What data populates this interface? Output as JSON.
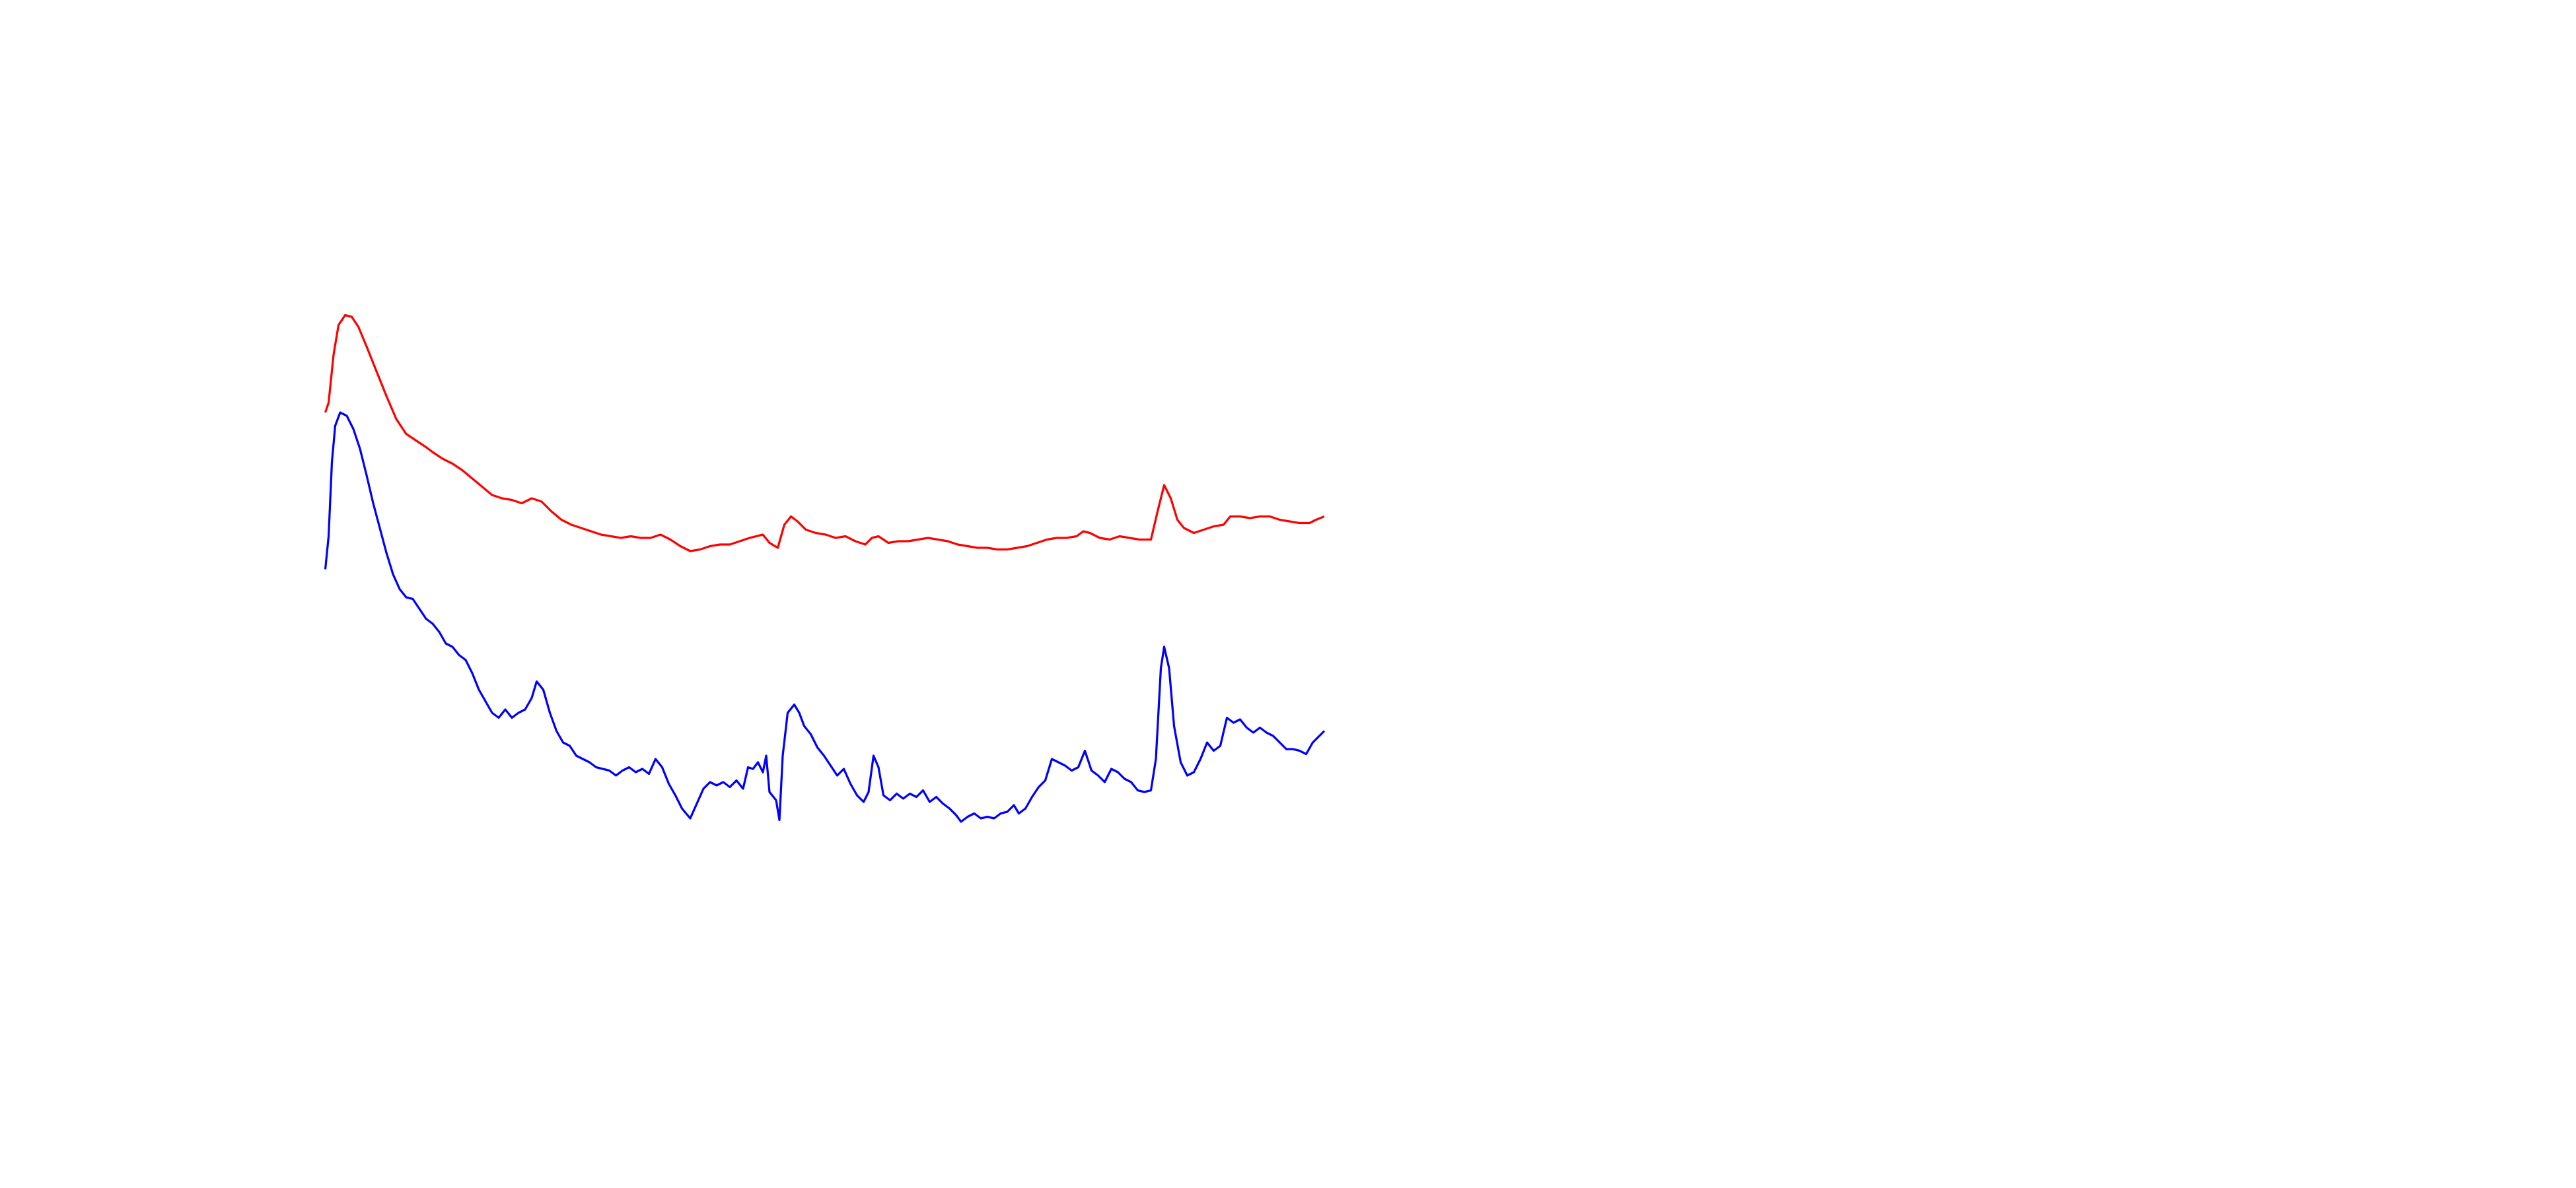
{
  "chart_data": {
    "type": "line",
    "xlim": [
      0,
      1560
    ],
    "ylim": [
      720,
      0
    ],
    "series": [
      {
        "color": "#ff0000",
        "x": [
          197,
          199,
          202,
          205,
          209,
          213,
          217,
          222,
          228,
          234,
          240,
          246,
          252,
          258,
          262,
          268,
          274,
          280,
          286,
          292,
          298,
          304,
          310,
          316,
          322,
          328,
          334,
          340,
          346,
          352,
          358,
          364,
          370,
          376,
          382,
          388,
          394,
          400,
          406,
          412,
          418,
          424,
          430,
          436,
          442,
          448,
          454,
          458,
          462,
          466,
          471,
          475,
          479,
          483,
          488,
          494,
          500,
          506,
          512,
          518,
          524,
          528,
          532,
          538,
          544,
          550,
          556,
          562,
          568,
          574,
          580,
          586,
          592,
          598,
          604,
          610,
          616,
          622,
          628,
          634,
          640,
          646,
          652,
          656,
          660,
          666,
          672,
          678,
          684,
          690,
          697,
          701,
          705,
          709,
          713,
          717,
          723,
          729,
          735,
          741,
          745,
          751,
          757,
          763,
          769,
          775,
          781,
          787,
          793,
          797,
          802
        ],
        "values": [
          250,
          244,
          215,
          197,
          191,
          192,
          198,
          210,
          225,
          240,
          254,
          263,
          267,
          271,
          274,
          278,
          281,
          285,
          290,
          295,
          300,
          302,
          303,
          305,
          302,
          304,
          310,
          315,
          318,
          320,
          322,
          324,
          325,
          326,
          325,
          326,
          326,
          324,
          327,
          331,
          334,
          333,
          331,
          330,
          330,
          328,
          326,
          325,
          324,
          329,
          332,
          318,
          313,
          316,
          321,
          323,
          324,
          326,
          325,
          328,
          330,
          326,
          325,
          329,
          328,
          328,
          327,
          326,
          327,
          328,
          330,
          331,
          332,
          332,
          333,
          333,
          332,
          331,
          329,
          327,
          326,
          326,
          325,
          322,
          323,
          326,
          327,
          325,
          326,
          327,
          327,
          310,
          294,
          302,
          315,
          320,
          323,
          321,
          319,
          318,
          313,
          313,
          314,
          313,
          313,
          315,
          316,
          317,
          317,
          315,
          313
        ]
      },
      {
        "color": "#0000ff",
        "x": [
          197,
          199,
          201,
          203,
          206,
          210,
          214,
          218,
          222,
          226,
          230,
          234,
          238,
          242,
          246,
          250,
          254,
          258,
          262,
          266,
          270,
          274,
          278,
          282,
          286,
          290,
          294,
          298,
          302,
          306,
          310,
          314,
          318,
          322,
          325,
          329,
          333,
          337,
          341,
          345,
          349,
          353,
          357,
          361,
          365,
          369,
          373,
          377,
          381,
          385,
          389,
          393,
          397,
          401,
          405,
          409,
          413,
          418,
          422,
          426,
          430,
          434,
          438,
          442,
          446,
          450,
          453,
          456,
          459,
          462,
          464,
          466,
          470,
          472,
          474,
          477,
          481,
          484,
          487,
          491,
          495,
          499,
          503,
          507,
          511,
          515,
          519,
          523,
          526,
          529,
          532,
          535,
          539,
          543,
          547,
          551,
          555,
          559,
          563,
          567,
          571,
          575,
          579,
          582,
          586,
          590,
          594,
          598,
          602,
          606,
          610,
          614,
          617,
          621,
          625,
          629,
          633,
          637,
          641,
          645,
          649,
          653,
          657,
          661,
          665,
          669,
          673,
          677,
          681,
          685,
          689,
          693,
          697,
          700,
          703,
          705,
          708,
          711,
          715,
          719,
          723,
          727,
          731,
          735,
          739,
          743,
          747,
          751,
          755,
          759,
          763,
          767,
          771,
          775,
          779,
          783,
          787,
          791,
          795,
          799,
          802
        ],
        "values": [
          345,
          325,
          280,
          258,
          250,
          252,
          260,
          272,
          288,
          305,
          320,
          335,
          348,
          357,
          362,
          363,
          369,
          375,
          378,
          383,
          390,
          392,
          397,
          400,
          408,
          418,
          425,
          432,
          435,
          430,
          435,
          432,
          430,
          423,
          413,
          418,
          432,
          443,
          450,
          452,
          458,
          460,
          462,
          465,
          466,
          467,
          470,
          467,
          465,
          468,
          466,
          469,
          460,
          465,
          475,
          482,
          490,
          496,
          487,
          478,
          474,
          476,
          474,
          477,
          473,
          478,
          465,
          466,
          462,
          468,
          458,
          480,
          485,
          497,
          458,
          432,
          427,
          432,
          440,
          445,
          453,
          458,
          464,
          470,
          466,
          475,
          482,
          486,
          480,
          458,
          465,
          482,
          485,
          481,
          484,
          481,
          483,
          479,
          486,
          483,
          487,
          490,
          494,
          498,
          495,
          493,
          496,
          495,
          496,
          493,
          492,
          488,
          493,
          490,
          483,
          477,
          473,
          460,
          462,
          464,
          467,
          465,
          455,
          467,
          470,
          474,
          466,
          468,
          472,
          474,
          479,
          480,
          479,
          460,
          405,
          392,
          405,
          440,
          462,
          470,
          468,
          460,
          450,
          455,
          452,
          435,
          438,
          436,
          441,
          444,
          441,
          444,
          446,
          450,
          454,
          454,
          455,
          457,
          450,
          446,
          443
        ]
      }
    ]
  }
}
